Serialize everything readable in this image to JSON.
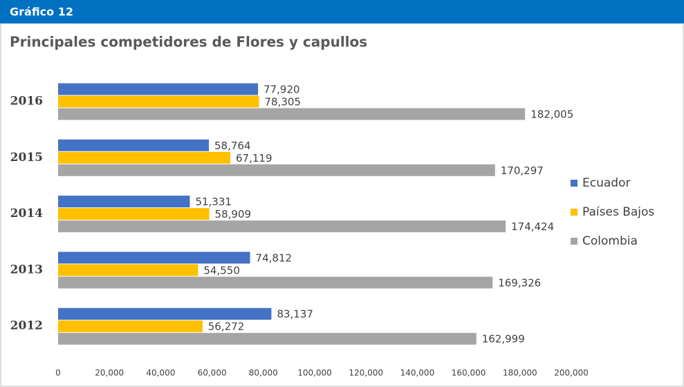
{
  "header": "Gráfico 12",
  "chart_data": {
    "type": "hbar",
    "title": "Principales competidores de Flores y capullos",
    "categories": [
      "2016",
      "2015",
      "2014",
      "2013",
      "2012"
    ],
    "series": [
      {
        "name": "Ecuador",
        "color": "#4472c4",
        "values": [
          77920,
          58764,
          51331,
          74812,
          83137
        ],
        "value_labels": [
          "77,920",
          "58,764",
          "51,331",
          "74,812",
          "83,137"
        ]
      },
      {
        "name": "Países Bajos",
        "color": "#ffc000",
        "values": [
          78305,
          67119,
          58909,
          54550,
          56272
        ],
        "value_labels": [
          "78,305",
          "67,119",
          "58,909",
          "54,550",
          "56,272"
        ]
      },
      {
        "name": "Colombia",
        "color": "#a5a5a5",
        "values": [
          182005,
          170297,
          174424,
          169326,
          162999
        ],
        "value_labels": [
          "182,005",
          "170,297",
          "174,424",
          "169,326",
          "162,999"
        ]
      }
    ],
    "xlim": [
      0,
      200000
    ],
    "xticks": [
      0,
      {
        "value": 20000,
        "label": "20,000"
      },
      {
        "value": 40000,
        "label": "40,000"
      },
      {
        "value": 60000,
        "label": "60,000"
      },
      {
        "value": 80000,
        "label": "80,000"
      },
      {
        "value": 100000,
        "label": "100,000"
      },
      {
        "value": 120000,
        "label": "120,000"
      },
      {
        "value": 140000,
        "label": "140,000"
      },
      {
        "value": 160000,
        "label": "160,000"
      },
      {
        "value": 180000,
        "label": "180,000"
      },
      {
        "value": 200000,
        "label": "200,000"
      }
    ],
    "legend": "right"
  }
}
